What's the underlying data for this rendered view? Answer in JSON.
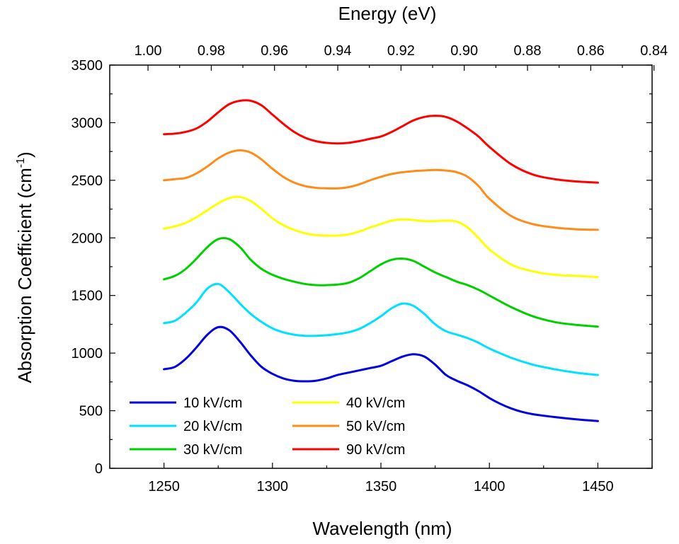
{
  "chart_data": {
    "type": "line",
    "xlabel": "Wavelength (nm)",
    "ylabel_main": "Absorption Coefficient (cm",
    "ylabel_sup": "-1",
    "ylabel_close": ")",
    "top_xlabel": "Energy (eV)",
    "xlim": [
      1225,
      1475
    ],
    "ylim": [
      0,
      3500
    ],
    "top_xlim": [
      1.0121,
      0.8406
    ],
    "x_ticks": [
      1250,
      1300,
      1350,
      1400,
      1450
    ],
    "x_tick_labels": [
      "1250",
      "1300",
      "1350",
      "1400",
      "1450"
    ],
    "y_ticks": [
      0,
      500,
      1000,
      1500,
      2000,
      2500,
      3000,
      3500
    ],
    "y_tick_labels": [
      "0",
      "500",
      "1000",
      "1500",
      "2000",
      "2500",
      "3000",
      "3500"
    ],
    "top_ticks": [
      1.0,
      0.98,
      0.96,
      0.94,
      0.92,
      0.9,
      0.88,
      0.86,
      0.84
    ],
    "top_tick_labels": [
      "1.00",
      "0.98",
      "0.96",
      "0.94",
      "0.92",
      "0.90",
      "0.88",
      "0.86",
      "0.84"
    ],
    "grid": false,
    "legend_position": "bottom-left",
    "series": [
      {
        "name": "10 kV/cm",
        "color": "#0000e0",
        "x": [
          1250,
          1255,
          1260,
          1265,
          1270,
          1275,
          1280,
          1285,
          1290,
          1295,
          1300,
          1305,
          1310,
          1315,
          1320,
          1325,
          1330,
          1335,
          1340,
          1345,
          1350,
          1355,
          1360,
          1365,
          1370,
          1375,
          1380,
          1385,
          1390,
          1395,
          1400,
          1405,
          1410,
          1415,
          1420,
          1430,
          1440,
          1450
        ],
        "y": [
          860,
          880,
          950,
          1050,
          1160,
          1225,
          1200,
          1100,
          980,
          880,
          820,
          780,
          760,
          755,
          760,
          780,
          810,
          830,
          850,
          870,
          890,
          930,
          970,
          990,
          970,
          900,
          810,
          760,
          720,
          670,
          610,
          560,
          520,
          490,
          470,
          445,
          425,
          410
        ]
      },
      {
        "name": "20 kV/cm",
        "color": "#00e0ff",
        "x": [
          1250,
          1255,
          1260,
          1265,
          1270,
          1275,
          1280,
          1285,
          1290,
          1295,
          1300,
          1305,
          1310,
          1315,
          1320,
          1325,
          1330,
          1335,
          1340,
          1345,
          1350,
          1355,
          1360,
          1365,
          1370,
          1375,
          1380,
          1385,
          1390,
          1395,
          1400,
          1410,
          1420,
          1430,
          1440,
          1450
        ],
        "y": [
          1260,
          1280,
          1350,
          1440,
          1560,
          1600,
          1530,
          1430,
          1340,
          1270,
          1215,
          1180,
          1160,
          1150,
          1150,
          1155,
          1165,
          1180,
          1210,
          1260,
          1320,
          1390,
          1430,
          1410,
          1340,
          1250,
          1190,
          1160,
          1130,
          1090,
          1040,
          960,
          900,
          860,
          830,
          810
        ]
      },
      {
        "name": "30 kV/cm",
        "color": "#00d000",
        "x": [
          1250,
          1255,
          1260,
          1265,
          1270,
          1275,
          1280,
          1285,
          1290,
          1295,
          1300,
          1305,
          1310,
          1315,
          1320,
          1325,
          1330,
          1335,
          1340,
          1345,
          1350,
          1355,
          1360,
          1365,
          1370,
          1375,
          1380,
          1385,
          1390,
          1395,
          1400,
          1410,
          1420,
          1430,
          1440,
          1450
        ],
        "y": [
          1640,
          1670,
          1730,
          1820,
          1920,
          1990,
          1990,
          1920,
          1810,
          1730,
          1680,
          1645,
          1620,
          1600,
          1590,
          1590,
          1595,
          1610,
          1650,
          1710,
          1770,
          1810,
          1820,
          1800,
          1750,
          1700,
          1660,
          1620,
          1590,
          1550,
          1500,
          1400,
          1320,
          1270,
          1245,
          1230
        ]
      },
      {
        "name": "40 kV/cm",
        "color": "#ffff00",
        "x": [
          1250,
          1255,
          1260,
          1265,
          1270,
          1275,
          1280,
          1285,
          1290,
          1295,
          1300,
          1305,
          1310,
          1315,
          1320,
          1325,
          1330,
          1335,
          1340,
          1345,
          1350,
          1355,
          1360,
          1365,
          1370,
          1375,
          1380,
          1385,
          1390,
          1395,
          1400,
          1410,
          1420,
          1430,
          1440,
          1450
        ],
        "y": [
          2080,
          2100,
          2130,
          2180,
          2240,
          2300,
          2345,
          2355,
          2320,
          2250,
          2170,
          2110,
          2070,
          2040,
          2025,
          2020,
          2020,
          2030,
          2055,
          2090,
          2120,
          2150,
          2160,
          2155,
          2145,
          2145,
          2150,
          2140,
          2090,
          2000,
          1900,
          1770,
          1710,
          1680,
          1670,
          1660
        ]
      },
      {
        "name": "50 kV/cm",
        "color": "#ff8c1a",
        "x": [
          1250,
          1255,
          1260,
          1265,
          1270,
          1275,
          1280,
          1285,
          1290,
          1295,
          1300,
          1305,
          1310,
          1315,
          1320,
          1325,
          1330,
          1335,
          1340,
          1345,
          1350,
          1355,
          1360,
          1365,
          1370,
          1375,
          1380,
          1385,
          1390,
          1395,
          1400,
          1410,
          1420,
          1430,
          1440,
          1450
        ],
        "y": [
          2500,
          2510,
          2520,
          2560,
          2620,
          2690,
          2740,
          2760,
          2740,
          2680,
          2600,
          2530,
          2480,
          2450,
          2435,
          2430,
          2430,
          2440,
          2465,
          2500,
          2530,
          2555,
          2570,
          2580,
          2585,
          2590,
          2585,
          2570,
          2530,
          2450,
          2340,
          2190,
          2120,
          2090,
          2075,
          2070
        ]
      },
      {
        "name": "90 kV/cm",
        "color": "#ff0000",
        "x": [
          1250,
          1255,
          1260,
          1265,
          1270,
          1275,
          1280,
          1285,
          1290,
          1295,
          1300,
          1305,
          1310,
          1315,
          1320,
          1325,
          1330,
          1335,
          1340,
          1345,
          1350,
          1355,
          1360,
          1365,
          1370,
          1375,
          1380,
          1385,
          1390,
          1395,
          1400,
          1410,
          1420,
          1430,
          1440,
          1450
        ],
        "y": [
          2900,
          2905,
          2920,
          2950,
          3010,
          3090,
          3160,
          3190,
          3190,
          3150,
          3070,
          2990,
          2920,
          2870,
          2840,
          2825,
          2820,
          2825,
          2840,
          2860,
          2880,
          2920,
          2970,
          3020,
          3050,
          3060,
          3050,
          3010,
          2950,
          2880,
          2790,
          2640,
          2550,
          2510,
          2490,
          2480
        ]
      }
    ]
  }
}
